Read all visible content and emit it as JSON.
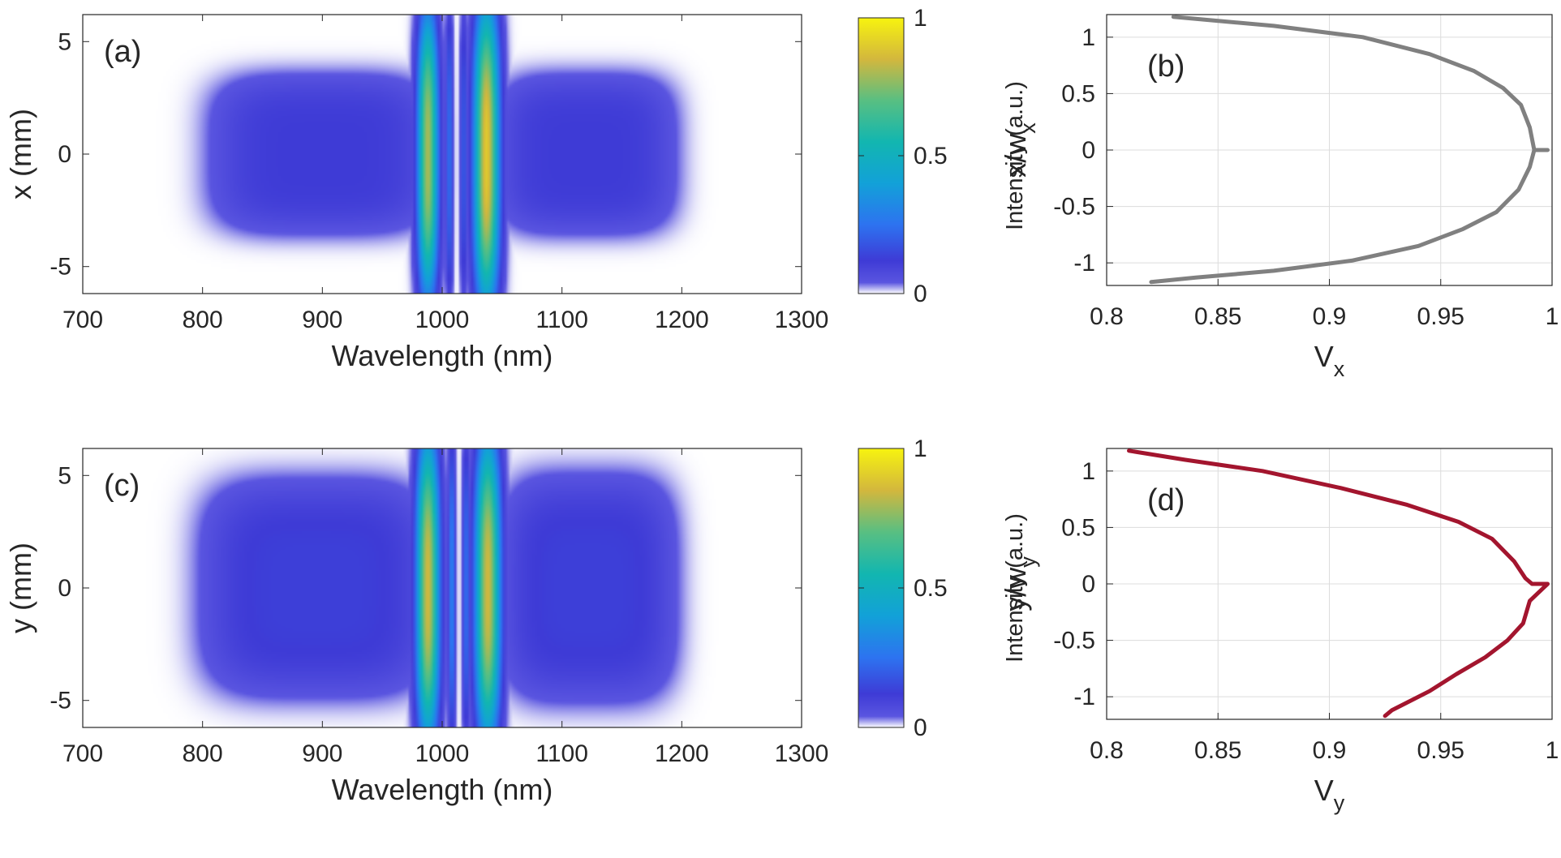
{
  "chart_data": [
    {
      "panel": "(a)",
      "type": "heatmap",
      "xlabel": "Wavelength (nm)",
      "ylabel": "x (mm)",
      "xlim": [
        700,
        1300
      ],
      "ylim": [
        -6.2,
        6.2
      ],
      "xticks": [
        700,
        800,
        900,
        1000,
        1100,
        1200,
        1300
      ],
      "yticks": [
        -5,
        0,
        5
      ],
      "colormap": "parula-like with white at zero",
      "colorbar": {
        "label": "Intensity (a.u.)",
        "ticks": [
          0,
          0.5,
          1
        ],
        "lim": [
          0,
          1
        ]
      },
      "features": [
        {
          "center_nm": 900,
          "peak": 0.12,
          "half_width_nm": 90,
          "half_height_mm": 3.4
        },
        {
          "center_nm": 1120,
          "peak": 0.12,
          "half_width_nm": 72,
          "half_height_mm": 3.4
        },
        {
          "center_nm": 988,
          "peak": 0.8,
          "half_width_nm": 9,
          "half_height_mm": 5.6
        },
        {
          "center_nm": 1006,
          "peak": 0.25,
          "half_width_nm": 3,
          "half_height_mm": 5.8
        },
        {
          "center_nm": 1018,
          "peak": 0.2,
          "half_width_nm": 3,
          "half_height_mm": 5.8
        },
        {
          "center_nm": 1037,
          "peak": 0.9,
          "half_width_nm": 11,
          "half_height_mm": 6.0
        }
      ]
    },
    {
      "panel": "(b)",
      "type": "line",
      "xlabel": "V",
      "xlabel_sub": "x",
      "ylabel": "x/w",
      "ylabel_sub": "x",
      "xlim": [
        0.8,
        1.0
      ],
      "ylim": [
        -1.2,
        1.2
      ],
      "xticks": [
        0.8,
        0.85,
        0.9,
        0.95,
        1
      ],
      "xtick_labels": [
        "0.8",
        "0.85",
        "0.9",
        "0.95",
        "1"
      ],
      "yticks": [
        -1,
        -0.5,
        0,
        0.5,
        1
      ],
      "ytick_labels": [
        "-1",
        "-0.5",
        "0",
        "0.5",
        "1"
      ],
      "grid": true,
      "color": "#808080",
      "series": [
        {
          "x": [
            0.83,
            0.875,
            0.915,
            0.945,
            0.965,
            0.978,
            0.986,
            0.99,
            0.992,
            0.998,
            0.992,
            0.99,
            0.985,
            0.975,
            0.96,
            0.94,
            0.91,
            0.875,
            0.84,
            0.82
          ],
          "y": [
            1.18,
            1.1,
            1.0,
            0.85,
            0.7,
            0.55,
            0.4,
            0.2,
            0.0,
            0.0,
            0.0,
            -0.15,
            -0.35,
            -0.55,
            -0.7,
            -0.85,
            -0.98,
            -1.07,
            -1.13,
            -1.17
          ]
        }
      ]
    },
    {
      "panel": "(c)",
      "type": "heatmap",
      "xlabel": "Wavelength (nm)",
      "ylabel": "y (mm)",
      "xlim": [
        700,
        1300
      ],
      "ylim": [
        -6.2,
        6.2
      ],
      "xticks": [
        700,
        800,
        900,
        1000,
        1100,
        1200,
        1300
      ],
      "yticks": [
        -5,
        0,
        5
      ],
      "colormap": "parula-like with white at zero",
      "colorbar": {
        "label": "Intensity (a.u.)",
        "ticks": [
          0,
          0.5,
          1
        ],
        "lim": [
          0,
          1
        ]
      },
      "features": [
        {
          "center_nm": 895,
          "peak": 0.13,
          "half_width_nm": 92,
          "half_height_mm": 4.6
        },
        {
          "center_nm": 1122,
          "peak": 0.13,
          "half_width_nm": 70,
          "half_height_mm": 4.8
        },
        {
          "center_nm": 988,
          "peak": 0.85,
          "half_width_nm": 10,
          "half_height_mm": 6.0
        },
        {
          "center_nm": 1008,
          "peak": 0.3,
          "half_width_nm": 3,
          "half_height_mm": 6.0
        },
        {
          "center_nm": 1020,
          "peak": 0.25,
          "half_width_nm": 3,
          "half_height_mm": 6.0
        },
        {
          "center_nm": 1038,
          "peak": 0.85,
          "half_width_nm": 11,
          "half_height_mm": 6.0
        }
      ]
    },
    {
      "panel": "(d)",
      "type": "line",
      "xlabel": "V",
      "xlabel_sub": "y",
      "ylabel": "y/w",
      "ylabel_sub": "y",
      "xlim": [
        0.8,
        1.0
      ],
      "ylim": [
        -1.2,
        1.2
      ],
      "xticks": [
        0.8,
        0.85,
        0.9,
        0.95,
        1
      ],
      "xtick_labels": [
        "0.8",
        "0.85",
        "0.9",
        "0.95",
        "1"
      ],
      "yticks": [
        -1,
        -0.5,
        0,
        0.5,
        1
      ],
      "ytick_labels": [
        "-1",
        "-0.5",
        "0",
        "0.5",
        "1"
      ],
      "grid": true,
      "color": "#a3152e",
      "series": [
        {
          "x": [
            0.81,
            0.835,
            0.87,
            0.905,
            0.935,
            0.958,
            0.973,
            0.983,
            0.988,
            0.991,
            0.998,
            0.99,
            0.987,
            0.98,
            0.97,
            0.957,
            0.945,
            0.935,
            0.928,
            0.925
          ],
          "y": [
            1.18,
            1.1,
            1.0,
            0.85,
            0.7,
            0.55,
            0.4,
            0.2,
            0.05,
            0.0,
            0.0,
            -0.15,
            -0.35,
            -0.5,
            -0.65,
            -0.8,
            -0.95,
            -1.05,
            -1.12,
            -1.17
          ]
        }
      ]
    }
  ]
}
